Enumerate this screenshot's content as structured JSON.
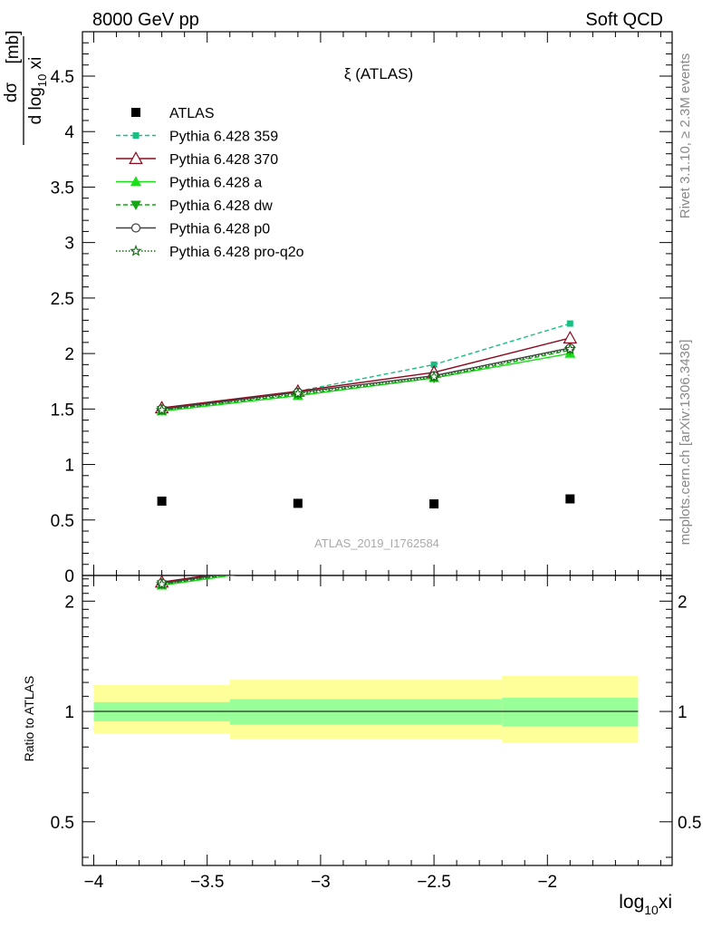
{
  "header": {
    "left": "8000 GeV pp",
    "right": "Soft QCD"
  },
  "side_labels": {
    "rivet": "Rivet 3.1.10, ≥ 2.3M events",
    "mcplots": "mcplots.cern.ch [arXiv:1306.3436]"
  },
  "chart_data": {
    "type": "line",
    "title": "ξ (ATLAS)",
    "watermark": "ATLAS_2019_I1762584",
    "xlabel": "log10xi",
    "ylabel": "dσ / d log10 xi [mb]",
    "ratio_ylabel": "Ratio to ATLAS",
    "xlim": [
      -4.05,
      -1.45
    ],
    "ylim": [
      0,
      4.9
    ],
    "ratio_ylim": [
      0.38,
      2.35
    ],
    "ratio_log": true,
    "x_ticks": [
      "−4",
      "−3.5",
      "−3",
      "−2.5",
      "−2"
    ],
    "y_ticks": [
      "0",
      "0.5",
      "1",
      "1.5",
      "2",
      "2.5",
      "3",
      "3.5",
      "4",
      "4.5"
    ],
    "ratio_ticks": [
      "0.5",
      "1",
      "2"
    ],
    "x": [
      -3.7,
      -3.1,
      -2.5,
      -1.9
    ],
    "data": {
      "name": "ATLAS",
      "values": [
        0.67,
        0.65,
        0.645,
        0.69
      ],
      "bin_edges": [
        -4.0,
        -3.4,
        -2.8,
        -2.2,
        -1.6
      ],
      "band_stat": [
        [
          0.94,
          1.06
        ],
        [
          0.92,
          1.08
        ],
        [
          0.92,
          1.08
        ],
        [
          0.91,
          1.09
        ]
      ],
      "band_total": [
        [
          0.87,
          1.18
        ],
        [
          0.84,
          1.22
        ],
        [
          0.84,
          1.22
        ],
        [
          0.82,
          1.25
        ]
      ]
    },
    "series": [
      {
        "name": "Pythia 6.428 359",
        "values": [
          1.5,
          1.66,
          1.9,
          2.27
        ],
        "color": "#19bf82",
        "dash": "5,3",
        "marker": "square-filled"
      },
      {
        "name": "Pythia 6.428 370",
        "values": [
          1.51,
          1.66,
          1.83,
          2.14
        ],
        "color": "#8b0a1e",
        "dash": "",
        "marker": "triangle-open"
      },
      {
        "name": "Pythia 6.428 a",
        "values": [
          1.48,
          1.62,
          1.78,
          2.0
        ],
        "color": "#1adf1a",
        "dash": "",
        "marker": "triangle-filled"
      },
      {
        "name": "Pythia 6.428 dw",
        "values": [
          1.49,
          1.63,
          1.78,
          2.03
        ],
        "color": "#16a516",
        "dash": "5,3",
        "marker": "triangle-down-filled"
      },
      {
        "name": "Pythia 6.428 p0",
        "values": [
          1.5,
          1.65,
          1.8,
          2.05
        ],
        "color": "#404040",
        "dash": "",
        "marker": "circle-open"
      },
      {
        "name": "Pythia 6.428 pro-q2o",
        "values": [
          1.49,
          1.64,
          1.79,
          2.04
        ],
        "color": "#0d6b0d",
        "dash": "1.5,2",
        "marker": "star-open"
      }
    ]
  }
}
